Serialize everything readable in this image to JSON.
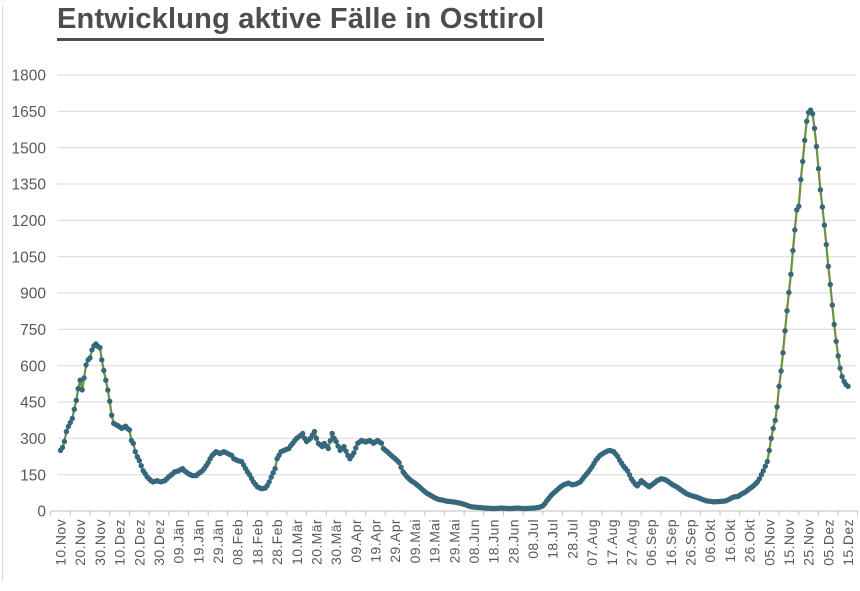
{
  "colors": {
    "background": "#ffffff",
    "chart_border": "#d9d9d9",
    "title": "#4d4d4d",
    "axis_labels": "#595959",
    "gridline": "#d9d9d9",
    "axis_line": "#bfbfbf",
    "series_line": "#6F9240",
    "series_marker": "#35687C"
  },
  "chart_data": {
    "type": "line",
    "title": "Entwicklung aktive Fälle in Osttirol",
    "xlabel": "",
    "ylabel": "",
    "ylim": [
      0,
      1800
    ],
    "y_ticks": [
      0,
      150,
      300,
      450,
      600,
      750,
      900,
      1050,
      1200,
      1350,
      1500,
      1650,
      1800
    ],
    "grid": "horizontal",
    "legend": "none",
    "x_tick_step_days": 10,
    "x_tick_labels": [
      "10.Nov",
      "20.Nov",
      "30.Nov",
      "10.Dez",
      "20.Dez",
      "30.Dez",
      "09.Jän",
      "19.Jän",
      "29.Jän",
      "08.Feb",
      "18.Feb",
      "28.Feb",
      "10.Mär",
      "20.Mär",
      "30.Mär",
      "09.Apr",
      "19.Apr",
      "29.Apr",
      "09.Mai",
      "19.Mai",
      "29.Mai",
      "08.Jun",
      "18.Jun",
      "28.Jun",
      "08.Jul",
      "18.Jul",
      "28.Jul",
      "07.Aug",
      "17.Aug",
      "27.Aug",
      "06.Sep",
      "16.Sep",
      "26.Sep",
      "06.Okt",
      "16.Okt",
      "26.Okt",
      "05.Nov",
      "15.Nov",
      "25.Nov",
      "05.Dez",
      "15.Dez"
    ],
    "series": [
      {
        "name": "Aktive Fälle",
        "marker": "circle",
        "line_color": "#6F9240",
        "marker_color": "#35687C",
        "sampling": "daily, linear interpolation between keypoints",
        "keypoints_day_value": [
          [
            0,
            250
          ],
          [
            1,
            262
          ],
          [
            2,
            287
          ],
          [
            3,
            328
          ],
          [
            4,
            349
          ],
          [
            5,
            365
          ],
          [
            6,
            382
          ],
          [
            7,
            420
          ],
          [
            8,
            457
          ],
          [
            9,
            505
          ],
          [
            10,
            540
          ],
          [
            11,
            500
          ],
          [
            12,
            549
          ],
          [
            13,
            603
          ],
          [
            14,
            624
          ],
          [
            15,
            632
          ],
          [
            16,
            665
          ],
          [
            17,
            682
          ],
          [
            18,
            690
          ],
          [
            19,
            680
          ],
          [
            20,
            674
          ],
          [
            21,
            624
          ],
          [
            22,
            580
          ],
          [
            23,
            540
          ],
          [
            24,
            499
          ],
          [
            25,
            453
          ],
          [
            26,
            395
          ],
          [
            27,
            362
          ],
          [
            28,
            357
          ],
          [
            29,
            353
          ],
          [
            31,
            341
          ],
          [
            33,
            350
          ],
          [
            34,
            341
          ],
          [
            35,
            335
          ],
          [
            36,
            291
          ],
          [
            37,
            279
          ],
          [
            38,
            245
          ],
          [
            39,
            224
          ],
          [
            40,
            208
          ],
          [
            41,
            187
          ],
          [
            42,
            166
          ],
          [
            43,
            154
          ],
          [
            44,
            141
          ],
          [
            45,
            133
          ],
          [
            46,
            125
          ],
          [
            47,
            120
          ],
          [
            49,
            125
          ],
          [
            51,
            120
          ],
          [
            53,
            125
          ],
          [
            55,
            141
          ],
          [
            57,
            154
          ],
          [
            58,
            162
          ],
          [
            60,
            166
          ],
          [
            62,
            175
          ],
          [
            63,
            166
          ],
          [
            65,
            154
          ],
          [
            67,
            146
          ],
          [
            69,
            146
          ],
          [
            70,
            154
          ],
          [
            71,
            160
          ],
          [
            72,
            166
          ],
          [
            73,
            175
          ],
          [
            74,
            187
          ],
          [
            75,
            200
          ],
          [
            76,
            216
          ],
          [
            77,
            229
          ],
          [
            78,
            237
          ],
          [
            79,
            245
          ],
          [
            80,
            241
          ],
          [
            81,
            237
          ],
          [
            82,
            241
          ],
          [
            83,
            245
          ],
          [
            84,
            241
          ],
          [
            85,
            237
          ],
          [
            86,
            233
          ],
          [
            87,
            229
          ],
          [
            88,
            216
          ],
          [
            90,
            208
          ],
          [
            92,
            204
          ],
          [
            93,
            190
          ],
          [
            94,
            175
          ],
          [
            95,
            162
          ],
          [
            96,
            150
          ],
          [
            97,
            135
          ],
          [
            98,
            120
          ],
          [
            99,
            110
          ],
          [
            100,
            100
          ],
          [
            101,
            96
          ],
          [
            102,
            92
          ],
          [
            104,
            95
          ],
          [
            105,
            105
          ],
          [
            106,
            120
          ],
          [
            107,
            140
          ],
          [
            108,
            158
          ],
          [
            109,
            175
          ],
          [
            110,
            216
          ],
          [
            111,
            230
          ],
          [
            112,
            245
          ],
          [
            114,
            252
          ],
          [
            116,
            258
          ],
          [
            117,
            270
          ],
          [
            118,
            280
          ],
          [
            119,
            291
          ],
          [
            120,
            300
          ],
          [
            122,
            312
          ],
          [
            123,
            320
          ],
          [
            124,
            300
          ],
          [
            125,
            287
          ],
          [
            127,
            300
          ],
          [
            128,
            314
          ],
          [
            129,
            328
          ],
          [
            130,
            300
          ],
          [
            131,
            279
          ],
          [
            133,
            266
          ],
          [
            134,
            279
          ],
          [
            136,
            258
          ],
          [
            137,
            290
          ],
          [
            138,
            320
          ],
          [
            139,
            300
          ],
          [
            140,
            287
          ],
          [
            141,
            268
          ],
          [
            142,
            250
          ],
          [
            144,
            266
          ],
          [
            146,
            229
          ],
          [
            147,
            216
          ],
          [
            148,
            228
          ],
          [
            149,
            240
          ],
          [
            150,
            260
          ],
          [
            151,
            280
          ],
          [
            153,
            291
          ],
          [
            155,
            285
          ],
          [
            157,
            291
          ],
          [
            159,
            280
          ],
          [
            161,
            291
          ],
          [
            163,
            280
          ],
          [
            164,
            258
          ],
          [
            166,
            245
          ],
          [
            168,
            229
          ],
          [
            170,
            216
          ],
          [
            172,
            200
          ],
          [
            174,
            162
          ],
          [
            176,
            141
          ],
          [
            178,
            126
          ],
          [
            180,
            115
          ],
          [
            182,
            102
          ],
          [
            184,
            87
          ],
          [
            186,
            74
          ],
          [
            188,
            65
          ],
          [
            190,
            55
          ],
          [
            192,
            48
          ],
          [
            194,
            45
          ],
          [
            196,
            41
          ],
          [
            198,
            39
          ],
          [
            200,
            37
          ],
          [
            202,
            34
          ],
          [
            204,
            30
          ],
          [
            206,
            25
          ],
          [
            208,
            19
          ],
          [
            210,
            16
          ],
          [
            212,
            15
          ],
          [
            216,
            12
          ],
          [
            220,
            10
          ],
          [
            224,
            12
          ],
          [
            228,
            10
          ],
          [
            232,
            12
          ],
          [
            236,
            10
          ],
          [
            240,
            12
          ],
          [
            243,
            15
          ],
          [
            244,
            18
          ],
          [
            245,
            21
          ],
          [
            246,
            30
          ],
          [
            247,
            42
          ],
          [
            248,
            52
          ],
          [
            249,
            62
          ],
          [
            250,
            71
          ],
          [
            252,
            85
          ],
          [
            254,
            100
          ],
          [
            256,
            110
          ],
          [
            258,
            115
          ],
          [
            260,
            108
          ],
          [
            262,
            112
          ],
          [
            264,
            120
          ],
          [
            266,
            141
          ],
          [
            268,
            160
          ],
          [
            270,
            183
          ],
          [
            272,
            210
          ],
          [
            274,
            229
          ],
          [
            276,
            240
          ],
          [
            278,
            248
          ],
          [
            279,
            250
          ],
          [
            281,
            245
          ],
          [
            283,
            225
          ],
          [
            284,
            210
          ],
          [
            286,
            185
          ],
          [
            288,
            166
          ],
          [
            290,
            133
          ],
          [
            292,
            110
          ],
          [
            293,
            104
          ],
          [
            295,
            125
          ],
          [
            297,
            112
          ],
          [
            299,
            100
          ],
          [
            301,
            112
          ],
          [
            303,
            125
          ],
          [
            305,
            133
          ],
          [
            307,
            130
          ],
          [
            309,
            120
          ],
          [
            311,
            108
          ],
          [
            313,
            100
          ],
          [
            315,
            88
          ],
          [
            317,
            77
          ],
          [
            318,
            71
          ],
          [
            320,
            65
          ],
          [
            322,
            60
          ],
          [
            323,
            58
          ],
          [
            325,
            51
          ],
          [
            327,
            45
          ],
          [
            328,
            42
          ],
          [
            330,
            40
          ],
          [
            332,
            38
          ],
          [
            334,
            39
          ],
          [
            336,
            40
          ],
          [
            338,
            42
          ],
          [
            340,
            50
          ],
          [
            342,
            58
          ],
          [
            344,
            60
          ],
          [
            346,
            70
          ],
          [
            348,
            79
          ],
          [
            350,
            92
          ],
          [
            352,
            104
          ],
          [
            354,
            120
          ],
          [
            355,
            133
          ],
          [
            356,
            150
          ],
          [
            357,
            166
          ],
          [
            358,
            185
          ],
          [
            359,
            204
          ],
          [
            360,
            250
          ],
          [
            361,
            300
          ],
          [
            362,
            341
          ],
          [
            363,
            374
          ],
          [
            364,
            430
          ],
          [
            365,
            515
          ],
          [
            366,
            578
          ],
          [
            367,
            653
          ],
          [
            368,
            744
          ],
          [
            369,
            827
          ],
          [
            370,
            902
          ],
          [
            371,
            977
          ],
          [
            372,
            1075
          ],
          [
            373,
            1160
          ],
          [
            374,
            1243
          ],
          [
            375,
            1258
          ],
          [
            376,
            1368
          ],
          [
            377,
            1443
          ],
          [
            378,
            1530
          ],
          [
            379,
            1609
          ],
          [
            380,
            1645
          ],
          [
            381,
            1655
          ],
          [
            382,
            1640
          ],
          [
            383,
            1580
          ],
          [
            384,
            1505
          ],
          [
            385,
            1413
          ],
          [
            386,
            1326
          ],
          [
            387,
            1255
          ],
          [
            388,
            1180
          ],
          [
            389,
            1100
          ],
          [
            390,
            1010
          ],
          [
            391,
            935
          ],
          [
            392,
            850
          ],
          [
            393,
            770
          ],
          [
            394,
            700
          ],
          [
            395,
            640
          ],
          [
            396,
            590
          ],
          [
            397,
            555
          ],
          [
            398,
            535
          ],
          [
            399,
            522
          ],
          [
            400,
            515
          ]
        ]
      }
    ]
  }
}
